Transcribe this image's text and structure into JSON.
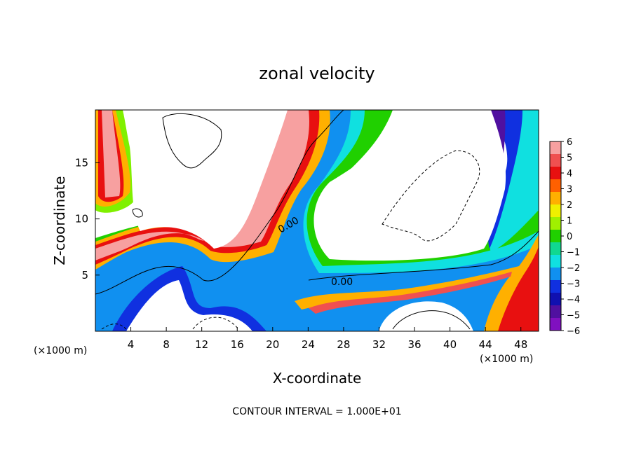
{
  "chart_data": {
    "type": "heatmap",
    "title": "zonal velocity",
    "xlabel": "X-coordinate",
    "ylabel": "Z-coordinate",
    "x_unit_left": "(×1000 m)",
    "x_unit_right": "(×1000 m)",
    "footer": "CONTOUR INTERVAL = 1.000E+01",
    "xlim": [
      0,
      50
    ],
    "ylim": [
      0,
      19.7
    ],
    "x_ticks": [
      "4",
      "8",
      "12",
      "16",
      "20",
      "24",
      "28",
      "32",
      "36",
      "40",
      "44",
      "48"
    ],
    "y_ticks": [
      "5",
      "10",
      "15"
    ],
    "colorbar": {
      "levels": [
        "6",
        "5",
        "4",
        "3",
        "2",
        "1",
        "0",
        "−1",
        "−2",
        "−3",
        "−4",
        "−5",
        "−6"
      ],
      "range": [
        -6,
        6
      ],
      "colors": [
        "#f7a0a0",
        "#f05050",
        "#e81010",
        "#ff6000",
        "#ffb000",
        "#f0f000",
        "#a0f000",
        "#20d000",
        "#10d890",
        "#10e0e0",
        "#1090f0",
        "#1030e0",
        "#1010b0",
        "#5010a0",
        "#8010c0"
      ]
    },
    "contour_labels": [
      "0.00",
      "0.00"
    ]
  }
}
